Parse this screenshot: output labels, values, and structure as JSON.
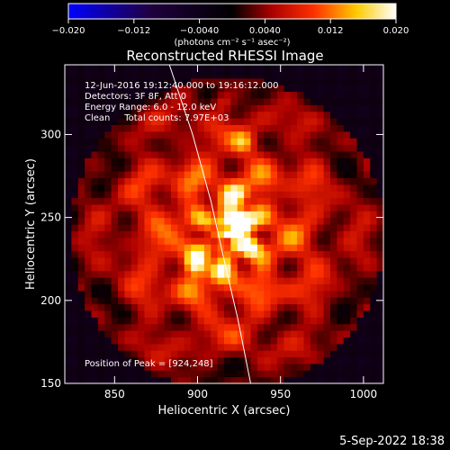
{
  "chart_data": {
    "type": "heatmap",
    "title": "Reconstructed RHESSI Image",
    "xlabel": "Heliocentric X (arcsec)",
    "ylabel": "Heliocentric Y (arcsec)",
    "xlim": [
      820,
      1012
    ],
    "ylim": [
      150,
      342
    ],
    "xticks": [
      "850",
      "900",
      "950",
      "1000"
    ],
    "yticks": [
      "150",
      "200",
      "250",
      "300"
    ],
    "colorbar": {
      "colormap": [
        "#0000ff",
        "#000000",
        "#ff0000",
        "#ffff00",
        "#ffffff"
      ],
      "range": [
        -0.02,
        0.02
      ],
      "ticks": [
        "−0.020",
        "−0.012",
        "−0.0040",
        "0.0040",
        "0.012",
        "0.020"
      ],
      "units": "(photons cm⁻² s⁻¹ asec⁻²)"
    },
    "annotations": [
      "12-Jun-2016 19:12:40.000 to 19:16:12.000",
      "Detectors: 3F 8F, Att 0",
      "Energy Range: 6.0 - 12.0 keV",
      "Clean     Total counts: 7.97E+03"
    ],
    "peak_label": "Position of Peak = [924,248]",
    "peak": [
      924,
      248
    ],
    "secondary_sources": [
      {
        "x": 930,
        "y": 233,
        "strength": 0.55
      },
      {
        "x": 899,
        "y": 223,
        "strength": 0.6
      },
      {
        "x": 913,
        "y": 218,
        "strength": 0.45
      },
      {
        "x": 924,
        "y": 264,
        "strength": 0.45
      },
      {
        "x": 928,
        "y": 296,
        "strength": 0.35
      },
      {
        "x": 915,
        "y": 320,
        "strength": 0.3
      }
    ],
    "limb_curve": {
      "x": [
        883,
        897,
        908,
        917,
        924,
        929,
        932
      ],
      "y": [
        342,
        300,
        260,
        220,
        190,
        165,
        150
      ]
    }
  },
  "timestamp": "5-Sep-2022 18:38"
}
